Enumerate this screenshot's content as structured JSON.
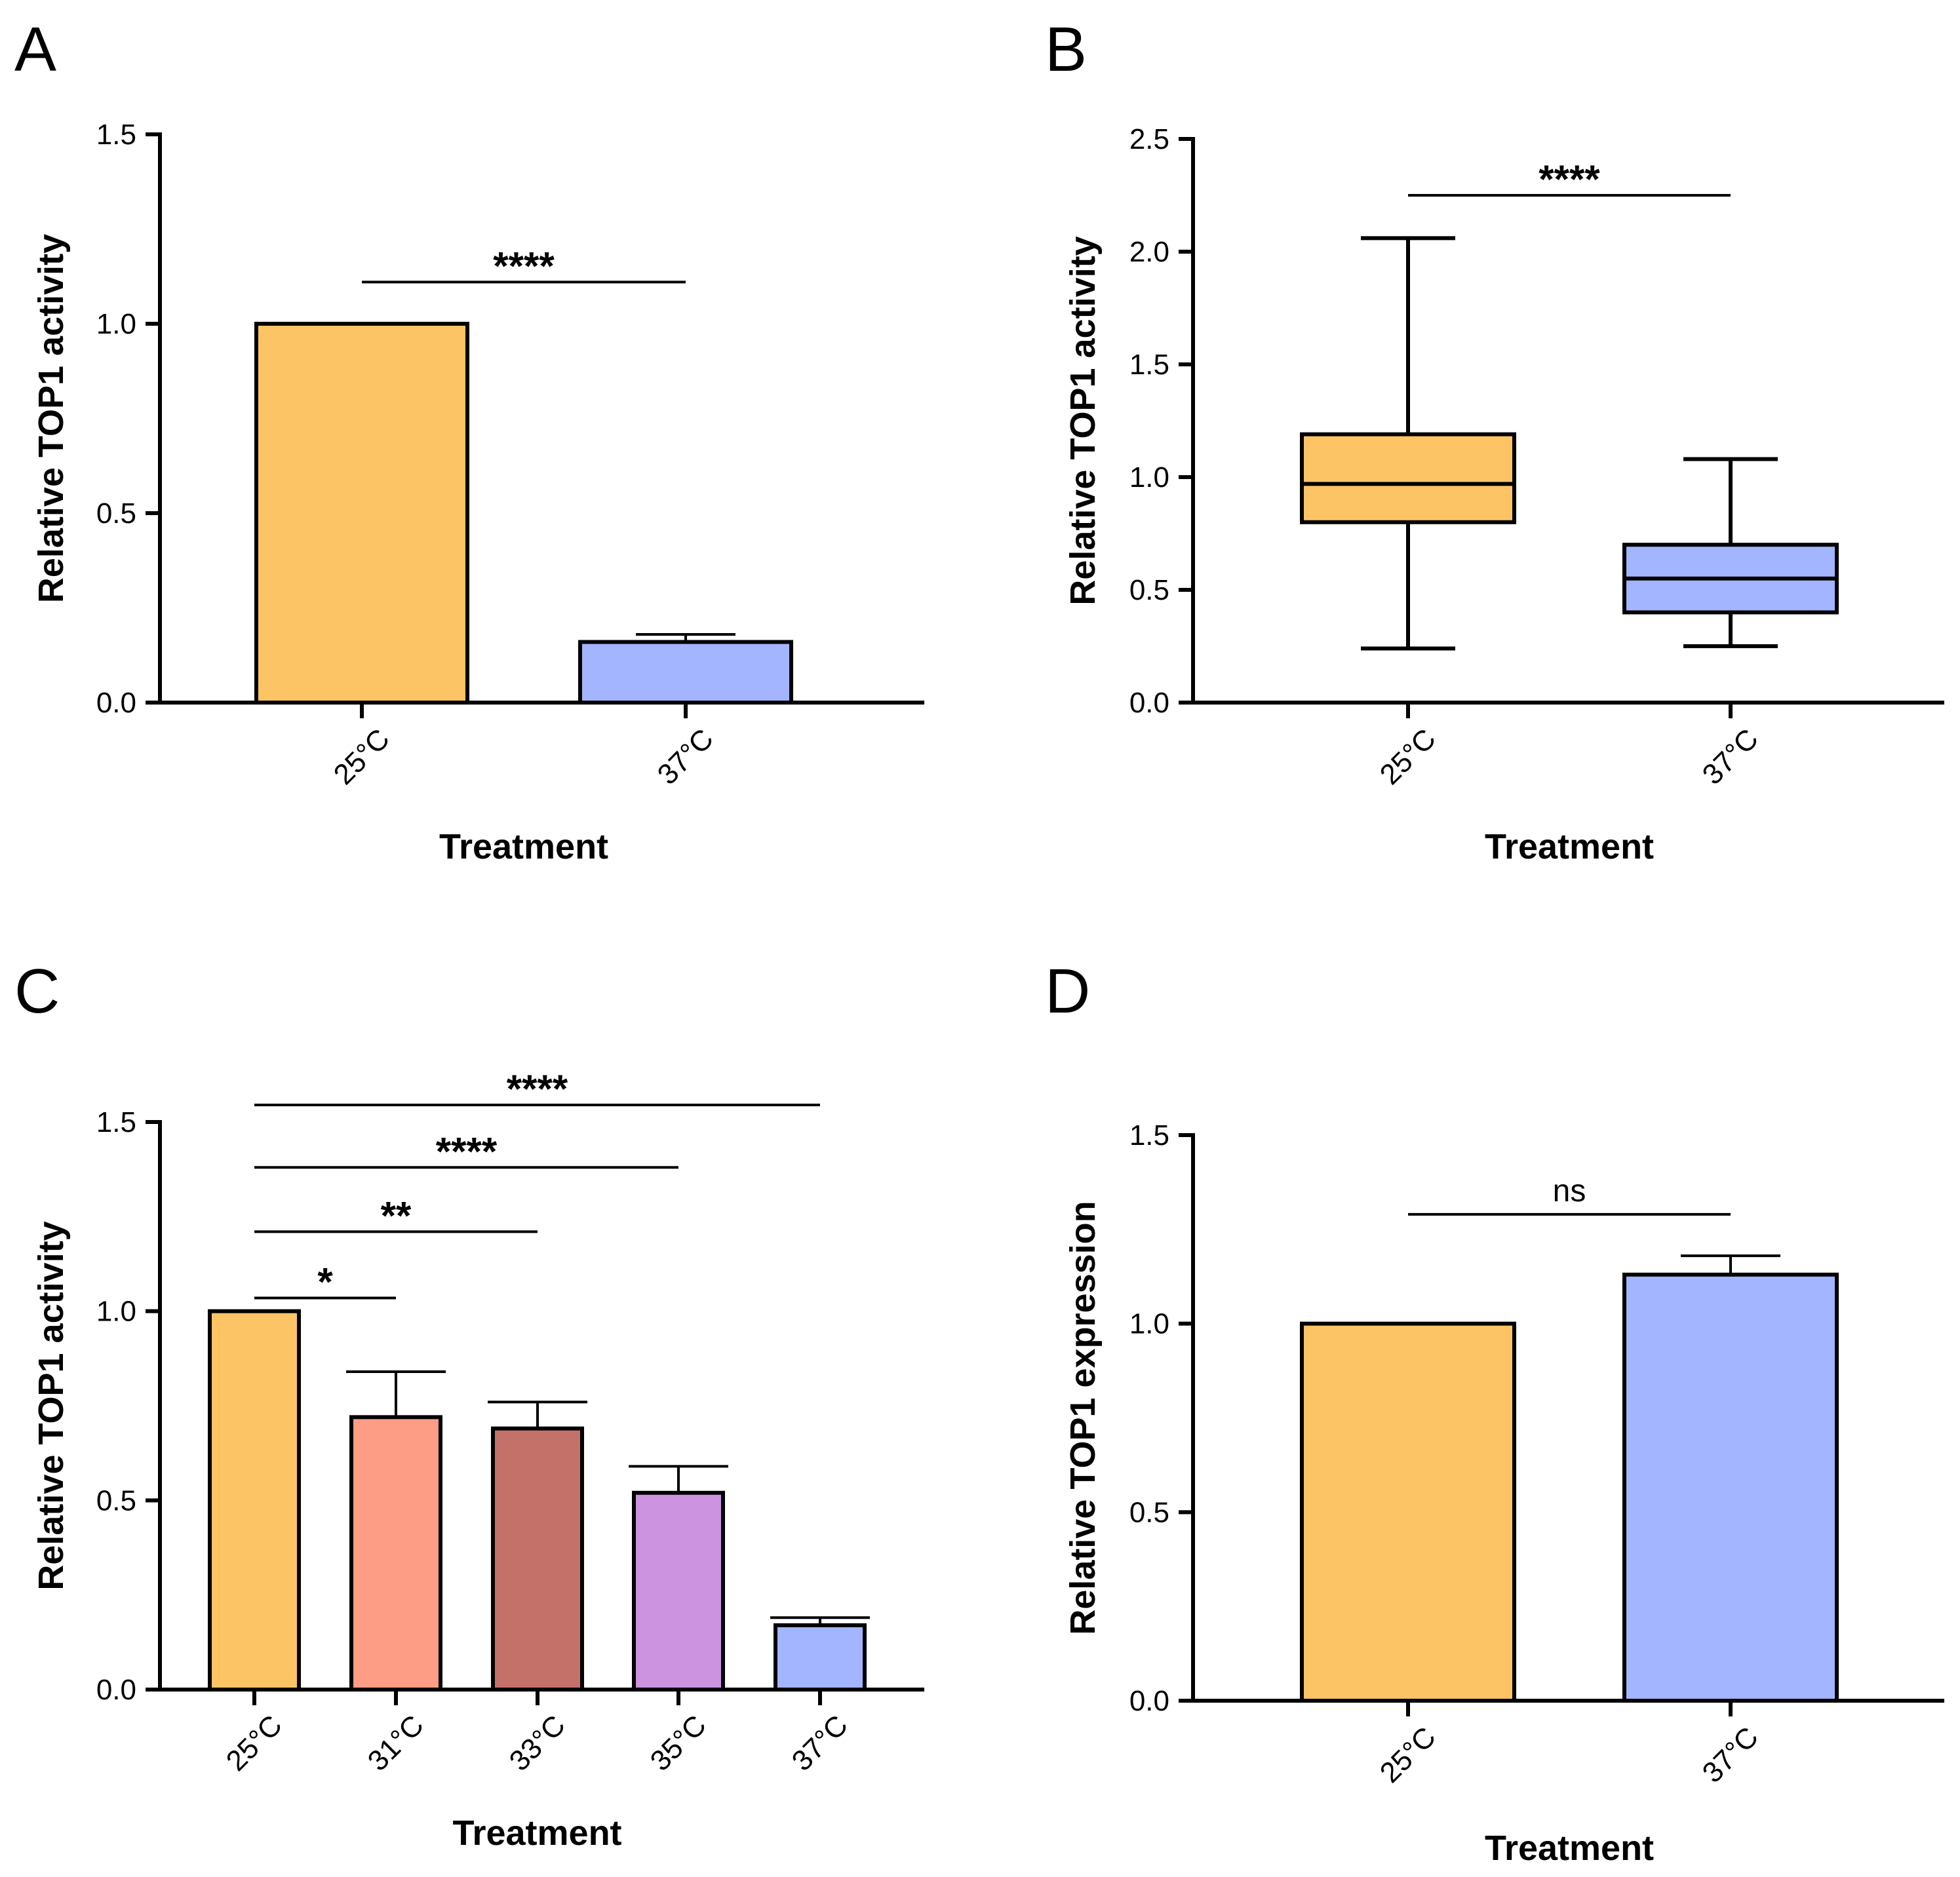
{
  "chart_data": [
    {
      "panel": "A",
      "type": "bar",
      "categories": [
        "25°C",
        "37°C"
      ],
      "values": [
        1.0,
        0.16
      ],
      "error_upper": [
        null,
        0.18
      ],
      "colors": [
        "#fdc466",
        "#a3b5ff"
      ],
      "xlabel": "Treatment",
      "ylabel": "Relative TOP1 activity",
      "ylim": [
        0,
        1.5
      ],
      "yticks": [
        "0.0",
        "0.5",
        "1.0",
        "1.5"
      ],
      "significance": [
        {
          "from": 0,
          "to": 1,
          "y": 1.11,
          "label": "****"
        }
      ]
    },
    {
      "panel": "B",
      "type": "box",
      "categories": [
        "25°C",
        "37°C"
      ],
      "boxes": [
        {
          "min": 0.24,
          "q1": 0.8,
          "median": 0.97,
          "q3": 1.19,
          "max": 2.06
        },
        {
          "min": 0.25,
          "q1": 0.4,
          "median": 0.55,
          "q3": 0.7,
          "max": 1.08
        }
      ],
      "colors": [
        "#fdc466",
        "#a3b5ff"
      ],
      "xlabel": "Treatment",
      "ylabel": "Relative TOP1 activity",
      "ylim": [
        0,
        2.5
      ],
      "yticks": [
        "0.0",
        "0.5",
        "1.0",
        "1.5",
        "2.0",
        "2.5"
      ],
      "significance": [
        {
          "from": 0,
          "to": 1,
          "y": 2.25,
          "label": "****"
        }
      ]
    },
    {
      "panel": "C",
      "type": "bar",
      "categories": [
        "25°C",
        "31°C",
        "33°C",
        "35°C",
        "37°C"
      ],
      "values": [
        1.0,
        0.72,
        0.69,
        0.52,
        0.17
      ],
      "error_upper": [
        null,
        0.84,
        0.76,
        0.59,
        0.19
      ],
      "colors": [
        "#fdc466",
        "#fe9d85",
        "#c4716a",
        "#cb93e0",
        "#a3b5ff"
      ],
      "xlabel": "Treatment",
      "ylabel": "Relative TOP1 activity",
      "ylim": [
        0,
        1.5
      ],
      "yticks": [
        "0.0",
        "0.5",
        "1.0",
        "1.5"
      ],
      "significance": [
        {
          "from": 0,
          "to": 1,
          "y": 1.035,
          "label": "*"
        },
        {
          "from": 0,
          "to": 2,
          "y": 1.21,
          "label": "**"
        },
        {
          "from": 0,
          "to": 3,
          "y": 1.38,
          "label": "****"
        },
        {
          "from": 0,
          "to": 4,
          "y": 1.545,
          "label": "****"
        }
      ]
    },
    {
      "panel": "D",
      "type": "bar",
      "categories": [
        "25°C",
        "37°C"
      ],
      "values": [
        1.0,
        1.13
      ],
      "error_upper": [
        null,
        1.18
      ],
      "colors": [
        "#fdc466",
        "#a3b5ff"
      ],
      "xlabel": "Treatment",
      "ylabel": "Relative TOP1 expression",
      "ylim": [
        0,
        1.5
      ],
      "yticks": [
        "0.0",
        "0.5",
        "1.0",
        "1.5"
      ],
      "significance": [
        {
          "from": 0,
          "to": 1,
          "y": 1.29,
          "label": "ns"
        }
      ]
    }
  ]
}
